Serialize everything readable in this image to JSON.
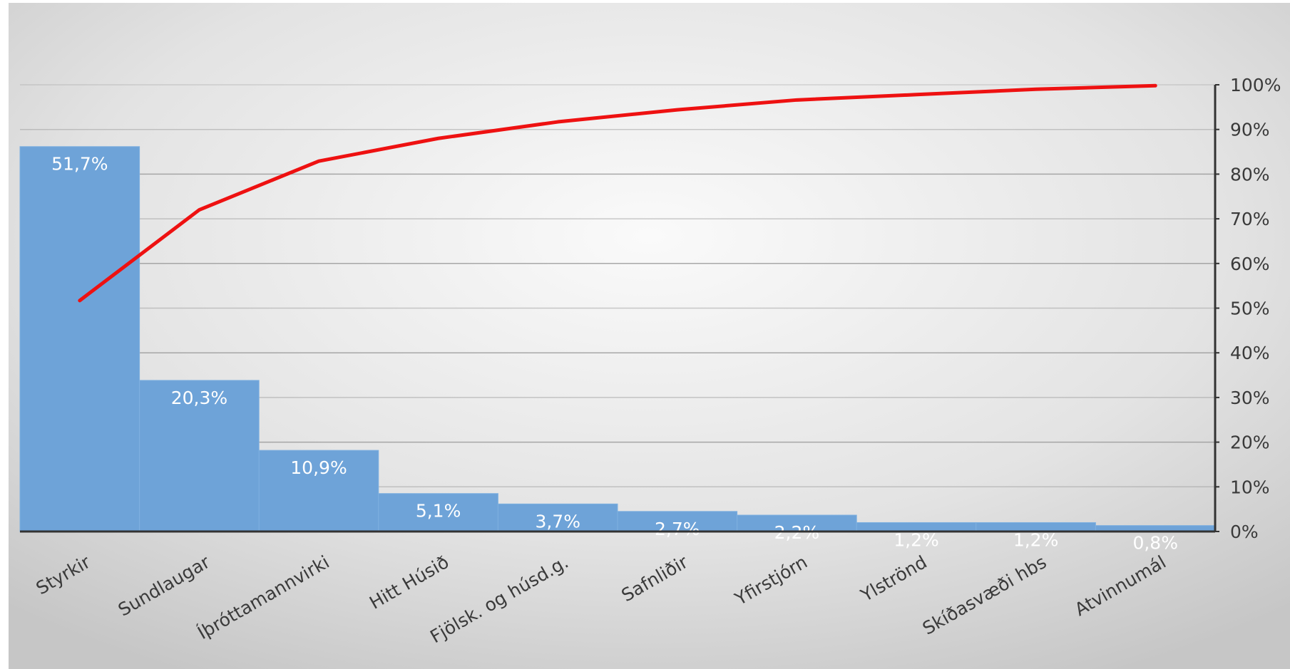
{
  "chart_data": {
    "type": "bar",
    "subtype": "pareto",
    "categories": [
      "Styrkir",
      "Sundlaugar",
      "Íþróttamannvirki",
      "Hitt Húsið",
      "Fjölsk. og húsd.g.",
      "Safnliðir",
      "Yfirstjórn",
      "Ylströnd",
      "Skíðasvæði hbs",
      "Atvinnumál"
    ],
    "series": [
      {
        "type": "bar",
        "values": [
          51.7,
          20.3,
          10.9,
          5.1,
          3.7,
          2.7,
          2.2,
          1.2,
          1.2,
          0.8
        ],
        "data_labels": [
          "51,7%",
          "20,3%",
          "10,9%",
          "5,1%",
          "3,7%",
          "2,7%",
          "2,2%",
          "1,2%",
          "1,2%",
          "0,8%"
        ],
        "axis": "none"
      },
      {
        "type": "line",
        "values": [
          51.7,
          72.0,
          82.9,
          88.0,
          91.7,
          94.4,
          96.6,
          97.8,
          99.0,
          99.8
        ],
        "axis": "right"
      }
    ],
    "y_right": {
      "range": [
        0,
        100
      ],
      "ticks": [
        "0%",
        "10%",
        "20%",
        "30%",
        "40%",
        "50%",
        "60%",
        "70%",
        "80%",
        "90%",
        "100%"
      ]
    },
    "bar_scale_max": 60,
    "grid": true,
    "legend": "none",
    "title": "",
    "xlabel": "",
    "ylabel": "",
    "colors": {
      "bar": "#6ea3d8",
      "line": "#ee1111",
      "grid": "#9a9a9a",
      "axis": "#333333",
      "background_center": "#fafafa",
      "background_edge": "#c6c6c6"
    }
  }
}
